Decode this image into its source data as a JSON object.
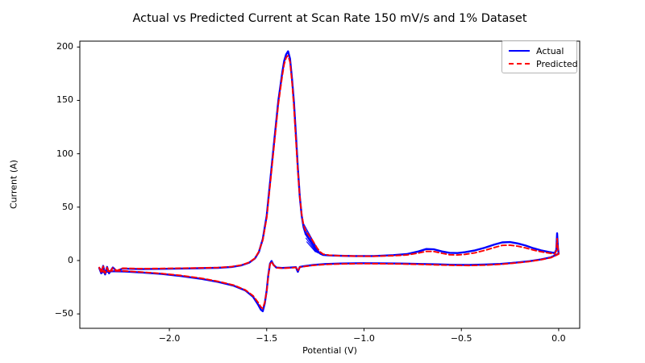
{
  "title": "Actual vs Predicted Current at Scan Rate 150 mV/s and 1% Dataset",
  "legend": {
    "position": "upper right",
    "items": [
      {
        "label": "Actual",
        "color": "#0000ff",
        "style": "solid"
      },
      {
        "label": "Predicted",
        "color": "#ff0000",
        "style": "dashed"
      }
    ]
  },
  "chart_data": {
    "type": "line",
    "title": "Actual vs Predicted Current at Scan Rate 150 mV/s and 1% Dataset",
    "xlabel": "Potential (V)",
    "ylabel": "Current (A)",
    "xlim": [
      -2.46,
      0.108
    ],
    "ylim": [
      -63.5,
      205.5
    ],
    "xticks": [
      -2.0,
      -1.5,
      -1.0,
      -0.5,
      0.0
    ],
    "xtick_labels": [
      "−2.0",
      "−1.5",
      "−1.0",
      "−0.5",
      "0.0"
    ],
    "yticks": [
      -50,
      0,
      50,
      100,
      150,
      200
    ],
    "ytick_labels": [
      "−50",
      "0",
      "50",
      "100",
      "150",
      "200"
    ],
    "grid": false,
    "frame_color": "#000000",
    "series": [
      {
        "name": "Actual",
        "color": "#0000ff",
        "line_style": "solid",
        "line_width": 2.4,
        "points": [
          [
            -2.36,
            -7
          ],
          [
            -2.35,
            -12
          ],
          [
            -2.34,
            -5
          ],
          [
            -2.33,
            -13
          ],
          [
            -2.32,
            -6
          ],
          [
            -2.31,
            -12
          ],
          [
            -2.29,
            -6.5
          ],
          [
            -2.27,
            -10
          ],
          [
            -2.24,
            -7.5
          ],
          [
            -2.15,
            -8
          ],
          [
            -2.05,
            -7.8
          ],
          [
            -1.95,
            -7.5
          ],
          [
            -1.85,
            -7.2
          ],
          [
            -1.75,
            -6.8
          ],
          [
            -1.68,
            -6
          ],
          [
            -1.63,
            -4.5
          ],
          [
            -1.59,
            -2
          ],
          [
            -1.56,
            2
          ],
          [
            -1.54,
            8
          ],
          [
            -1.52,
            20
          ],
          [
            -1.5,
            42
          ],
          [
            -1.48,
            78
          ],
          [
            -1.46,
            114
          ],
          [
            -1.44,
            150
          ],
          [
            -1.42,
            176
          ],
          [
            -1.41,
            187
          ],
          [
            -1.4,
            193
          ],
          [
            -1.39,
            196
          ],
          [
            -1.38,
            189
          ],
          [
            -1.37,
            170
          ],
          [
            -1.36,
            148
          ],
          [
            -1.35,
            118
          ],
          [
            -1.34,
            87
          ],
          [
            -1.33,
            60
          ],
          [
            -1.32,
            42
          ],
          [
            -1.31,
            31
          ],
          [
            -1.3,
            25
          ],
          [
            -1.285,
            21
          ],
          [
            -1.27,
            17
          ],
          [
            -1.255,
            13
          ],
          [
            -1.24,
            9
          ],
          [
            -1.225,
            6.5
          ],
          [
            -1.21,
            5.2
          ],
          [
            -1.18,
            4.8
          ],
          [
            -1.12,
            4.4
          ],
          [
            -1.05,
            4.2
          ],
          [
            -0.95,
            4.2
          ],
          [
            -0.85,
            5
          ],
          [
            -0.78,
            6
          ],
          [
            -0.72,
            8.5
          ],
          [
            -0.68,
            10.8
          ],
          [
            -0.64,
            10.5
          ],
          [
            -0.6,
            8.5
          ],
          [
            -0.56,
            7.2
          ],
          [
            -0.52,
            7
          ],
          [
            -0.48,
            7.8
          ],
          [
            -0.43,
            9.5
          ],
          [
            -0.38,
            12
          ],
          [
            -0.33,
            15
          ],
          [
            -0.29,
            17
          ],
          [
            -0.25,
            17.3
          ],
          [
            -0.21,
            16
          ],
          [
            -0.17,
            14
          ],
          [
            -0.13,
            11.5
          ],
          [
            -0.09,
            9.5
          ],
          [
            -0.05,
            8
          ],
          [
            -0.02,
            7
          ],
          [
            -0.012,
            10
          ],
          [
            -0.008,
            25.5
          ],
          [
            -0.004,
            12
          ],
          [
            0.0,
            6.5
          ],
          [
            -0.04,
            3
          ],
          [
            -0.09,
            1
          ],
          [
            -0.15,
            -0.6
          ],
          [
            -0.22,
            -2
          ],
          [
            -0.3,
            -3.2
          ],
          [
            -0.38,
            -3.8
          ],
          [
            -0.46,
            -4.2
          ],
          [
            -0.54,
            -4
          ],
          [
            -0.62,
            -3.6
          ],
          [
            -0.72,
            -3.2
          ],
          [
            -0.82,
            -2.8
          ],
          [
            -0.92,
            -2.6
          ],
          [
            -1.02,
            -2.5
          ],
          [
            -1.12,
            -2.8
          ],
          [
            -1.2,
            -3.3
          ],
          [
            -1.26,
            -4.2
          ],
          [
            -1.31,
            -5.4
          ],
          [
            -1.33,
            -6
          ],
          [
            -1.34,
            -10.5
          ],
          [
            -1.35,
            -6.2
          ],
          [
            -1.38,
            -6.6
          ],
          [
            -1.42,
            -7
          ],
          [
            -1.45,
            -6.6
          ],
          [
            -1.465,
            -4
          ],
          [
            -1.475,
            -0.5
          ],
          [
            -1.483,
            -3
          ],
          [
            -1.492,
            -14
          ],
          [
            -1.5,
            -28
          ],
          [
            -1.51,
            -40
          ],
          [
            -1.52,
            -47.5
          ],
          [
            -1.53,
            -46
          ],
          [
            -1.545,
            -41
          ],
          [
            -1.57,
            -34
          ],
          [
            -1.61,
            -28
          ],
          [
            -1.67,
            -23.5
          ],
          [
            -1.75,
            -20
          ],
          [
            -1.84,
            -17
          ],
          [
            -1.94,
            -14.5
          ],
          [
            -2.04,
            -12.5
          ],
          [
            -2.14,
            -11.2
          ],
          [
            -2.23,
            -10.2
          ],
          [
            -2.3,
            -10
          ],
          [
            -2.34,
            -11
          ],
          [
            -2.36,
            -7
          ]
        ]
      },
      {
        "name": "Predicted",
        "color": "#ff0000",
        "line_style": "dashed",
        "line_width": 1.9,
        "points": [
          [
            -2.36,
            -6.5
          ],
          [
            -2.35,
            -11
          ],
          [
            -2.34,
            -5.5
          ],
          [
            -2.33,
            -12
          ],
          [
            -2.32,
            -6.5
          ],
          [
            -2.31,
            -11
          ],
          [
            -2.29,
            -7
          ],
          [
            -2.27,
            -9.5
          ],
          [
            -2.24,
            -7.2
          ],
          [
            -2.15,
            -7.6
          ],
          [
            -2.05,
            -7.4
          ],
          [
            -1.95,
            -7.2
          ],
          [
            -1.85,
            -7
          ],
          [
            -1.75,
            -6.6
          ],
          [
            -1.68,
            -5.8
          ],
          [
            -1.63,
            -4.2
          ],
          [
            -1.59,
            -1.8
          ],
          [
            -1.56,
            2.2
          ],
          [
            -1.54,
            8.5
          ],
          [
            -1.52,
            19
          ],
          [
            -1.5,
            40
          ],
          [
            -1.48,
            75
          ],
          [
            -1.46,
            111
          ],
          [
            -1.44,
            147
          ],
          [
            -1.42,
            173
          ],
          [
            -1.41,
            184
          ],
          [
            -1.4,
            190
          ],
          [
            -1.39,
            192
          ],
          [
            -1.38,
            186
          ],
          [
            -1.37,
            167
          ],
          [
            -1.36,
            143
          ],
          [
            -1.35,
            113
          ],
          [
            -1.34,
            84
          ],
          [
            -1.33,
            60
          ],
          [
            -1.32,
            43
          ],
          [
            -1.31,
            33
          ],
          [
            -1.3,
            27.5
          ],
          [
            -1.285,
            24
          ],
          [
            -1.27,
            20.5
          ],
          [
            -1.255,
            16
          ],
          [
            -1.24,
            11.5
          ],
          [
            -1.225,
            8
          ],
          [
            -1.21,
            6
          ],
          [
            -1.18,
            5
          ],
          [
            -1.12,
            4.4
          ],
          [
            -1.05,
            4.1
          ],
          [
            -0.95,
            4
          ],
          [
            -0.85,
            4.5
          ],
          [
            -0.78,
            5.2
          ],
          [
            -0.72,
            7
          ],
          [
            -0.68,
            8.6
          ],
          [
            -0.64,
            8.4
          ],
          [
            -0.6,
            6.8
          ],
          [
            -0.56,
            5.4
          ],
          [
            -0.52,
            5.2
          ],
          [
            -0.48,
            5.8
          ],
          [
            -0.43,
            7.2
          ],
          [
            -0.38,
            9.5
          ],
          [
            -0.33,
            12.2
          ],
          [
            -0.29,
            14.2
          ],
          [
            -0.25,
            14.4
          ],
          [
            -0.21,
            13.4
          ],
          [
            -0.17,
            11.8
          ],
          [
            -0.13,
            9.8
          ],
          [
            -0.09,
            8.2
          ],
          [
            -0.05,
            7
          ],
          [
            -0.02,
            6.2
          ],
          [
            -0.012,
            9
          ],
          [
            -0.008,
            20.5
          ],
          [
            -0.004,
            11
          ],
          [
            0.0,
            6
          ],
          [
            -0.04,
            2.6
          ],
          [
            -0.09,
            0.8
          ],
          [
            -0.15,
            -0.9
          ],
          [
            -0.22,
            -2.3
          ],
          [
            -0.3,
            -3.6
          ],
          [
            -0.38,
            -4.3
          ],
          [
            -0.46,
            -4.7
          ],
          [
            -0.54,
            -4.5
          ],
          [
            -0.62,
            -4.1
          ],
          [
            -0.72,
            -3.6
          ],
          [
            -0.82,
            -3.2
          ],
          [
            -0.92,
            -3
          ],
          [
            -1.02,
            -2.9
          ],
          [
            -1.12,
            -3.2
          ],
          [
            -1.2,
            -3.7
          ],
          [
            -1.26,
            -4.5
          ],
          [
            -1.31,
            -5.7
          ],
          [
            -1.33,
            -6.3
          ],
          [
            -1.34,
            -9.5
          ],
          [
            -1.35,
            -6.5
          ],
          [
            -1.38,
            -6.9
          ],
          [
            -1.42,
            -7.2
          ],
          [
            -1.45,
            -6.8
          ],
          [
            -1.465,
            -4.2
          ],
          [
            -1.475,
            -1
          ],
          [
            -1.483,
            -3.5
          ],
          [
            -1.492,
            -15
          ],
          [
            -1.5,
            -29
          ],
          [
            -1.51,
            -39
          ],
          [
            -1.52,
            -45
          ],
          [
            -1.53,
            -43.5
          ],
          [
            -1.545,
            -39
          ],
          [
            -1.57,
            -33
          ],
          [
            -1.61,
            -27.5
          ],
          [
            -1.67,
            -23
          ],
          [
            -1.75,
            -19.5
          ],
          [
            -1.84,
            -16.5
          ],
          [
            -1.94,
            -14
          ],
          [
            -2.04,
            -12.2
          ],
          [
            -2.14,
            -10.8
          ],
          [
            -2.23,
            -9.8
          ],
          [
            -2.3,
            -9.6
          ],
          [
            -2.34,
            -10.5
          ],
          [
            -2.36,
            -6.5
          ]
        ]
      }
    ],
    "extra_traces": [
      {
        "name": "actual-cycle-fan-1",
        "color": "#0000ff",
        "line_style": "solid",
        "line_width": 1.1,
        "points": [
          [
            -1.318,
            37
          ],
          [
            -1.225,
            6.2
          ]
        ]
      },
      {
        "name": "actual-cycle-fan-2",
        "color": "#0000ff",
        "line_style": "solid",
        "line_width": 1.1,
        "points": [
          [
            -1.313,
            33
          ],
          [
            -1.23,
            6.6
          ]
        ]
      },
      {
        "name": "actual-cycle-fan-3",
        "color": "#0000ff",
        "line_style": "solid",
        "line_width": 1.1,
        "points": [
          [
            -1.308,
            29
          ],
          [
            -1.235,
            7
          ]
        ]
      },
      {
        "name": "actual-cycle-fan-4",
        "color": "#0000ff",
        "line_style": "solid",
        "line_width": 1.1,
        "points": [
          [
            -1.303,
            25
          ],
          [
            -1.24,
            7.4
          ]
        ]
      },
      {
        "name": "actual-cycle-fan-5",
        "color": "#0000ff",
        "line_style": "solid",
        "line_width": 1.1,
        "points": [
          [
            -1.298,
            21
          ],
          [
            -1.245,
            7.8
          ]
        ]
      },
      {
        "name": "actual-cycle-fan-6",
        "color": "#0000ff",
        "line_style": "solid",
        "line_width": 1.1,
        "points": [
          [
            -1.294,
            17.5
          ],
          [
            -1.25,
            8.2
          ]
        ]
      }
    ]
  }
}
